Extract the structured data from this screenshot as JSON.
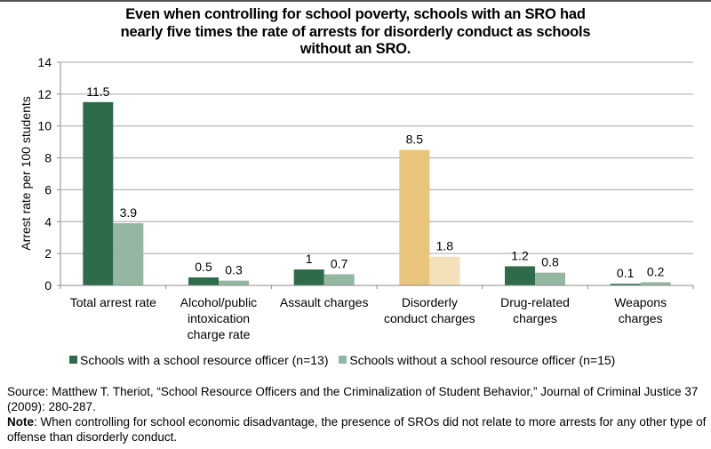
{
  "chart_data": {
    "type": "bar",
    "title": "Even when controlling for school poverty, schools with an SRO had nearly five times the rate of arrests for disorderly conduct as schools without an SRO.",
    "title_lines": [
      "Even when controlling for school poverty, schools with an SRO had",
      "nearly five times the rate of arrests for disorderly conduct as schools",
      "without an SRO."
    ],
    "xlabel": "",
    "ylabel": "Arrest rate per 100 students",
    "ylim": [
      0,
      14
    ],
    "yticks": [
      0,
      2,
      4,
      6,
      8,
      10,
      12,
      14
    ],
    "grid": true,
    "legend_position": "bottom",
    "categories": [
      [
        "Total arrest rate"
      ],
      [
        "Alcohol/public",
        "intoxication",
        "charge rate"
      ],
      [
        "Assault charges"
      ],
      [
        "Disorderly",
        "conduct charges"
      ],
      [
        "Drug-related",
        "charges"
      ],
      [
        "Weapons",
        "charges"
      ]
    ],
    "highlight_category_index": 3,
    "series": [
      {
        "name": "Schools with a school resource officer (n=13)",
        "values": [
          11.5,
          0.5,
          1,
          8.5,
          1.2,
          0.1
        ],
        "labels": [
          "11.5",
          "0.5",
          "1",
          "8.5",
          "1.2",
          "0.1"
        ],
        "color": "#2e6b4a",
        "highlight_color": "#e8c57a"
      },
      {
        "name": "Schools without a school resource officer (n=15)",
        "values": [
          3.9,
          0.3,
          0.7,
          1.8,
          0.8,
          0.2
        ],
        "labels": [
          "3.9",
          "0.3",
          "0.7",
          "1.8",
          "0.8",
          "0.2"
        ],
        "color": "#93b7a0",
        "highlight_color": "#f3e1b9"
      }
    ]
  },
  "colors": {
    "grid": "#a6a6a6",
    "axis": "#8c8c8c",
    "topbar": "#555555"
  },
  "footer": {
    "source_label": "Source:",
    "source_text": " Matthew T. Theriot, “School Resource Officers and the Criminalization of Student Behavior,” Journal of Criminal Justice 37 (2009): 280-287.",
    "note_label": "Note",
    "note_text": ": When controlling for school economic disadvantage, the presence of SROs did not relate to more arrests for any other type of offense than disorderly conduct."
  }
}
